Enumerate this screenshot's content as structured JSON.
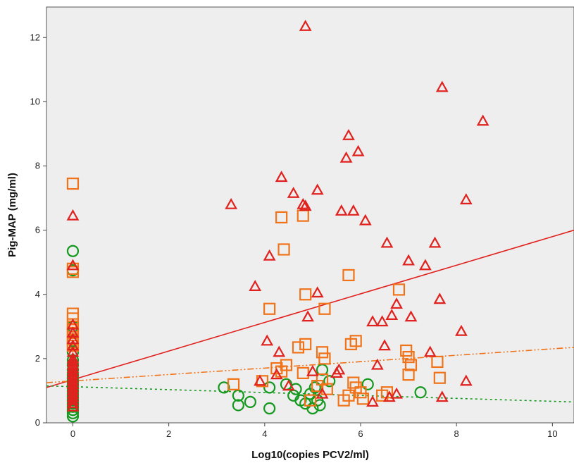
{
  "chart_data": {
    "type": "scatter",
    "xlabel": "Log10(copies PCV2/ml)",
    "ylabel": "Pig-MAP (mg/ml)",
    "xlim": [
      -0.55,
      10.45
    ],
    "ylim": [
      0,
      12.95
    ],
    "x_ticks": [
      0,
      2,
      4,
      6,
      8,
      10
    ],
    "y_ticks": [
      0,
      2,
      4,
      6,
      8,
      10,
      12
    ],
    "background": "#eeeeee",
    "grid": false,
    "legend": "none",
    "series": [
      {
        "marker": "triangle",
        "color": "#e1211d",
        "points": [
          [
            0,
            6.45
          ],
          [
            0,
            4.9
          ],
          [
            0,
            3.05
          ],
          [
            0,
            2.8
          ],
          [
            0,
            2.6
          ],
          [
            0,
            2.4
          ],
          [
            0,
            2.2
          ],
          [
            0,
            2.0
          ],
          [
            0,
            1.9
          ],
          [
            0,
            1.8
          ],
          [
            0,
            1.7
          ],
          [
            0,
            1.6
          ],
          [
            0,
            1.5
          ],
          [
            0,
            1.4
          ],
          [
            0,
            1.3
          ],
          [
            0,
            1.2
          ],
          [
            0,
            1.1
          ],
          [
            0,
            1.0
          ],
          [
            0,
            0.9
          ],
          [
            0,
            0.8
          ],
          [
            0,
            0.7
          ],
          [
            0,
            0.6
          ],
          [
            0,
            0.5
          ],
          [
            3.3,
            6.8
          ],
          [
            3.8,
            4.25
          ],
          [
            4.05,
            2.55
          ],
          [
            4.1,
            5.2
          ],
          [
            4.3,
            2.2
          ],
          [
            4.35,
            7.65
          ],
          [
            4.6,
            7.15
          ],
          [
            4.8,
            6.8
          ],
          [
            4.85,
            6.75
          ],
          [
            4.85,
            12.35
          ],
          [
            4.9,
            3.3
          ],
          [
            5.1,
            7.25
          ],
          [
            5.1,
            4.05
          ],
          [
            5.6,
            6.6
          ],
          [
            5.75,
            8.95
          ],
          [
            5.85,
            6.6
          ],
          [
            5.7,
            8.25
          ],
          [
            5.95,
            8.45
          ],
          [
            6.1,
            6.3
          ],
          [
            6.25,
            3.15
          ],
          [
            6.35,
            1.8
          ],
          [
            6.45,
            3.15
          ],
          [
            6.5,
            2.4
          ],
          [
            6.55,
            5.6
          ],
          [
            6.65,
            3.35
          ],
          [
            6.75,
            3.7
          ],
          [
            6.75,
            0.9
          ],
          [
            7.0,
            5.05
          ],
          [
            7.05,
            3.3
          ],
          [
            7.35,
            4.9
          ],
          [
            7.45,
            2.2
          ],
          [
            7.55,
            5.6
          ],
          [
            7.65,
            3.85
          ],
          [
            7.7,
            10.45
          ],
          [
            8.1,
            2.85
          ],
          [
            8.2,
            6.95
          ],
          [
            8.2,
            1.3
          ],
          [
            8.55,
            9.4
          ],
          [
            7.7,
            0.8
          ],
          [
            4.25,
            1.5
          ],
          [
            4.5,
            1.15
          ],
          [
            5.0,
            1.6
          ],
          [
            5.5,
            1.55
          ],
          [
            6.25,
            0.65
          ],
          [
            6.6,
            0.8
          ],
          [
            3.9,
            1.3
          ],
          [
            5.2,
            0.9
          ],
          [
            5.55,
            1.65
          ]
        ]
      },
      {
        "marker": "square",
        "color": "#f0731a",
        "points": [
          [
            0,
            7.45
          ],
          [
            0,
            4.8
          ],
          [
            0,
            4.7
          ],
          [
            0,
            3.4
          ],
          [
            0,
            3.25
          ],
          [
            0,
            3.0
          ],
          [
            0,
            2.9
          ],
          [
            0,
            2.8
          ],
          [
            0,
            2.6
          ],
          [
            0,
            2.5
          ],
          [
            0,
            2.4
          ],
          [
            4.35,
            6.4
          ],
          [
            4.8,
            6.45
          ],
          [
            4.4,
            5.4
          ],
          [
            4.1,
            3.55
          ],
          [
            4.85,
            4.0
          ],
          [
            5.25,
            3.55
          ],
          [
            5.75,
            4.6
          ],
          [
            6.8,
            4.15
          ],
          [
            4.7,
            2.35
          ],
          [
            4.85,
            2.45
          ],
          [
            5.2,
            2.2
          ],
          [
            5.25,
            2.0
          ],
          [
            5.8,
            2.45
          ],
          [
            5.9,
            2.55
          ],
          [
            6.95,
            2.25
          ],
          [
            7.0,
            2.05
          ],
          [
            7.6,
            1.9
          ],
          [
            7.05,
            1.8
          ],
          [
            3.35,
            1.2
          ],
          [
            3.95,
            1.3
          ],
          [
            4.25,
            1.7
          ],
          [
            4.35,
            1.6
          ],
          [
            4.45,
            1.8
          ],
          [
            4.8,
            1.55
          ],
          [
            5.1,
            1.15
          ],
          [
            5.2,
            1.35
          ],
          [
            5.3,
            1.05
          ],
          [
            5.65,
            0.7
          ],
          [
            5.75,
            0.85
          ],
          [
            5.85,
            1.25
          ],
          [
            5.9,
            1.1
          ],
          [
            6.0,
            0.95
          ],
          [
            6.05,
            0.75
          ],
          [
            6.45,
            0.85
          ],
          [
            6.55,
            0.95
          ],
          [
            7.0,
            1.5
          ],
          [
            7.65,
            1.4
          ],
          [
            4.95,
            0.7
          ]
        ]
      },
      {
        "marker": "circle",
        "color": "#14981e",
        "points": [
          [
            0,
            5.35
          ],
          [
            0,
            4.75
          ],
          [
            0,
            3.0
          ],
          [
            0,
            2.55
          ],
          [
            0,
            2.2
          ],
          [
            0,
            1.95
          ],
          [
            0,
            1.8
          ],
          [
            0,
            1.65
          ],
          [
            0,
            1.5
          ],
          [
            0,
            1.4
          ],
          [
            0,
            1.3
          ],
          [
            0,
            1.2
          ],
          [
            0,
            1.1
          ],
          [
            0,
            1.0
          ],
          [
            0,
            0.9
          ],
          [
            0,
            0.8
          ],
          [
            0,
            0.7
          ],
          [
            0,
            0.6
          ],
          [
            0,
            0.5
          ],
          [
            0,
            0.4
          ],
          [
            0,
            0.3
          ],
          [
            0,
            0.2
          ],
          [
            3.15,
            1.1
          ],
          [
            3.45,
            0.85
          ],
          [
            3.45,
            0.55
          ],
          [
            3.7,
            0.65
          ],
          [
            4.1,
            1.1
          ],
          [
            4.1,
            0.45
          ],
          [
            4.45,
            1.2
          ],
          [
            4.65,
            1.05
          ],
          [
            4.75,
            0.7
          ],
          [
            4.85,
            0.6
          ],
          [
            4.95,
            0.9
          ],
          [
            5.0,
            0.45
          ],
          [
            5.05,
            1.1
          ],
          [
            5.15,
            0.55
          ],
          [
            5.2,
            1.65
          ],
          [
            5.35,
            1.3
          ],
          [
            6.15,
            1.2
          ],
          [
            7.25,
            0.95
          ],
          [
            4.6,
            0.85
          ],
          [
            5.1,
            0.7
          ]
        ]
      }
    ],
    "fit_lines": [
      {
        "color": "#e1211d",
        "style": "solid",
        "x": [
          -0.55,
          10.45
        ],
        "y": [
          1.1,
          6.0
        ]
      },
      {
        "color": "#f0731a",
        "style": "dash-dot-dot",
        "x": [
          -0.55,
          10.45
        ],
        "y": [
          1.25,
          2.35
        ]
      },
      {
        "color": "#14981e",
        "style": "dotted",
        "x": [
          -0.55,
          10.45
        ],
        "y": [
          1.15,
          0.65
        ]
      }
    ]
  }
}
